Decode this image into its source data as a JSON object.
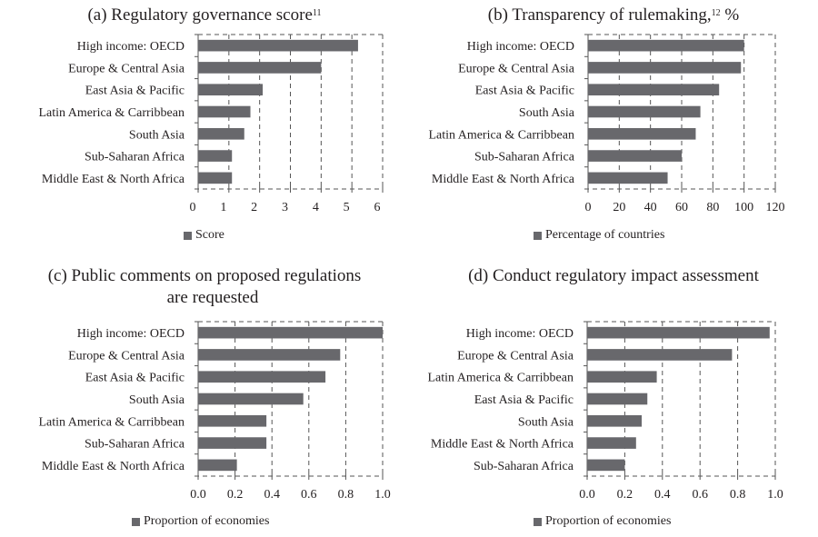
{
  "colors": {
    "bar": "#68686c",
    "grid": "#555555",
    "text": "#231f20"
  },
  "chart_data": [
    {
      "id": "a",
      "type": "bar",
      "orientation": "horizontal",
      "title": "(a) Regulatory governance score",
      "title_superscript": "11",
      "title_suffix": "",
      "categories": [
        "High income: OECD",
        "Europe & Central Asia",
        "East Asia & Pacific",
        "Latin America & Carribbean",
        "South Asia",
        "Sub-Saharan Africa",
        "Middle East & North Africa"
      ],
      "series": [
        {
          "name": "Score",
          "values": [
            5.2,
            4.0,
            2.1,
            1.7,
            1.5,
            1.1,
            1.1
          ]
        }
      ],
      "xlim": [
        0,
        6
      ],
      "xticks": [
        0,
        1,
        2,
        3,
        4,
        5,
        6
      ],
      "xtick_labels": [
        "0",
        "1",
        "2",
        "3",
        "4",
        "5",
        "6"
      ],
      "xlabel": "",
      "ylabel": "",
      "grid": "vertical dashed",
      "legend": {
        "position": "bottom",
        "entries": [
          "Score"
        ]
      }
    },
    {
      "id": "b",
      "type": "bar",
      "orientation": "horizontal",
      "title": "(b) Transparency of rulemaking,",
      "title_superscript": "12",
      "title_suffix": " %",
      "categories": [
        "High income: OECD",
        "Europe & Central Asia",
        "East Asia & Pacific",
        "South Asia",
        "Latin America & Carribbean",
        "Sub-Saharan Africa",
        "Middle East & North Africa"
      ],
      "series": [
        {
          "name": "Percentage of countries",
          "values": [
            100,
            98,
            84,
            72,
            69,
            60,
            51
          ]
        }
      ],
      "xlim": [
        0,
        120
      ],
      "xticks": [
        0,
        20,
        40,
        60,
        80,
        100,
        120
      ],
      "xtick_labels": [
        "0",
        "20",
        "40",
        "60",
        "80",
        "100",
        "120"
      ],
      "xlabel": "",
      "ylabel": "",
      "grid": "vertical dashed",
      "legend": {
        "position": "bottom",
        "entries": [
          "Percentage of countries"
        ]
      }
    },
    {
      "id": "c",
      "type": "bar",
      "orientation": "horizontal",
      "title": "(c) Public comments on proposed regulations",
      "title_line2": "are requested",
      "title_superscript": "",
      "title_suffix": "",
      "categories": [
        "High income: OECD",
        "Europe & Central Asia",
        "East Asia & Pacific",
        "South Asia",
        "Latin America & Carribbean",
        "Sub-Saharan Africa",
        "Middle East & North Africa"
      ],
      "series": [
        {
          "name": "Proportion of economies",
          "values": [
            1.0,
            0.77,
            0.69,
            0.57,
            0.37,
            0.37,
            0.21
          ]
        }
      ],
      "xlim": [
        0,
        1
      ],
      "xticks": [
        0,
        0.2,
        0.4,
        0.6,
        0.8,
        1.0
      ],
      "xtick_labels": [
        "0.0",
        "0.2",
        "0.4",
        "0.6",
        "0.8",
        "1.0"
      ],
      "xlabel": "",
      "ylabel": "",
      "grid": "vertical dashed",
      "legend": {
        "position": "bottom",
        "entries": [
          "Proportion of economies"
        ]
      }
    },
    {
      "id": "d",
      "type": "bar",
      "orientation": "horizontal",
      "title": "(d) Conduct regulatory impact assessment",
      "title_superscript": "",
      "title_suffix": "",
      "categories": [
        "High income: OECD",
        "Europe & Central Asia",
        "Latin America & Carribbean",
        "East Asia & Pacific",
        "South Asia",
        "Middle East & North Africa",
        "Sub-Saharan Africa"
      ],
      "series": [
        {
          "name": "Proportion of economies",
          "values": [
            0.97,
            0.77,
            0.37,
            0.32,
            0.29,
            0.26,
            0.2
          ]
        }
      ],
      "xlim": [
        0,
        1
      ],
      "xticks": [
        0,
        0.2,
        0.4,
        0.6,
        0.8,
        1.0
      ],
      "xtick_labels": [
        "0.0",
        "0.2",
        "0.4",
        "0.6",
        "0.8",
        "1.0"
      ],
      "xlabel": "",
      "ylabel": "",
      "grid": "vertical dashed",
      "legend": {
        "position": "bottom",
        "entries": [
          "Proportion of economies"
        ]
      }
    }
  ]
}
